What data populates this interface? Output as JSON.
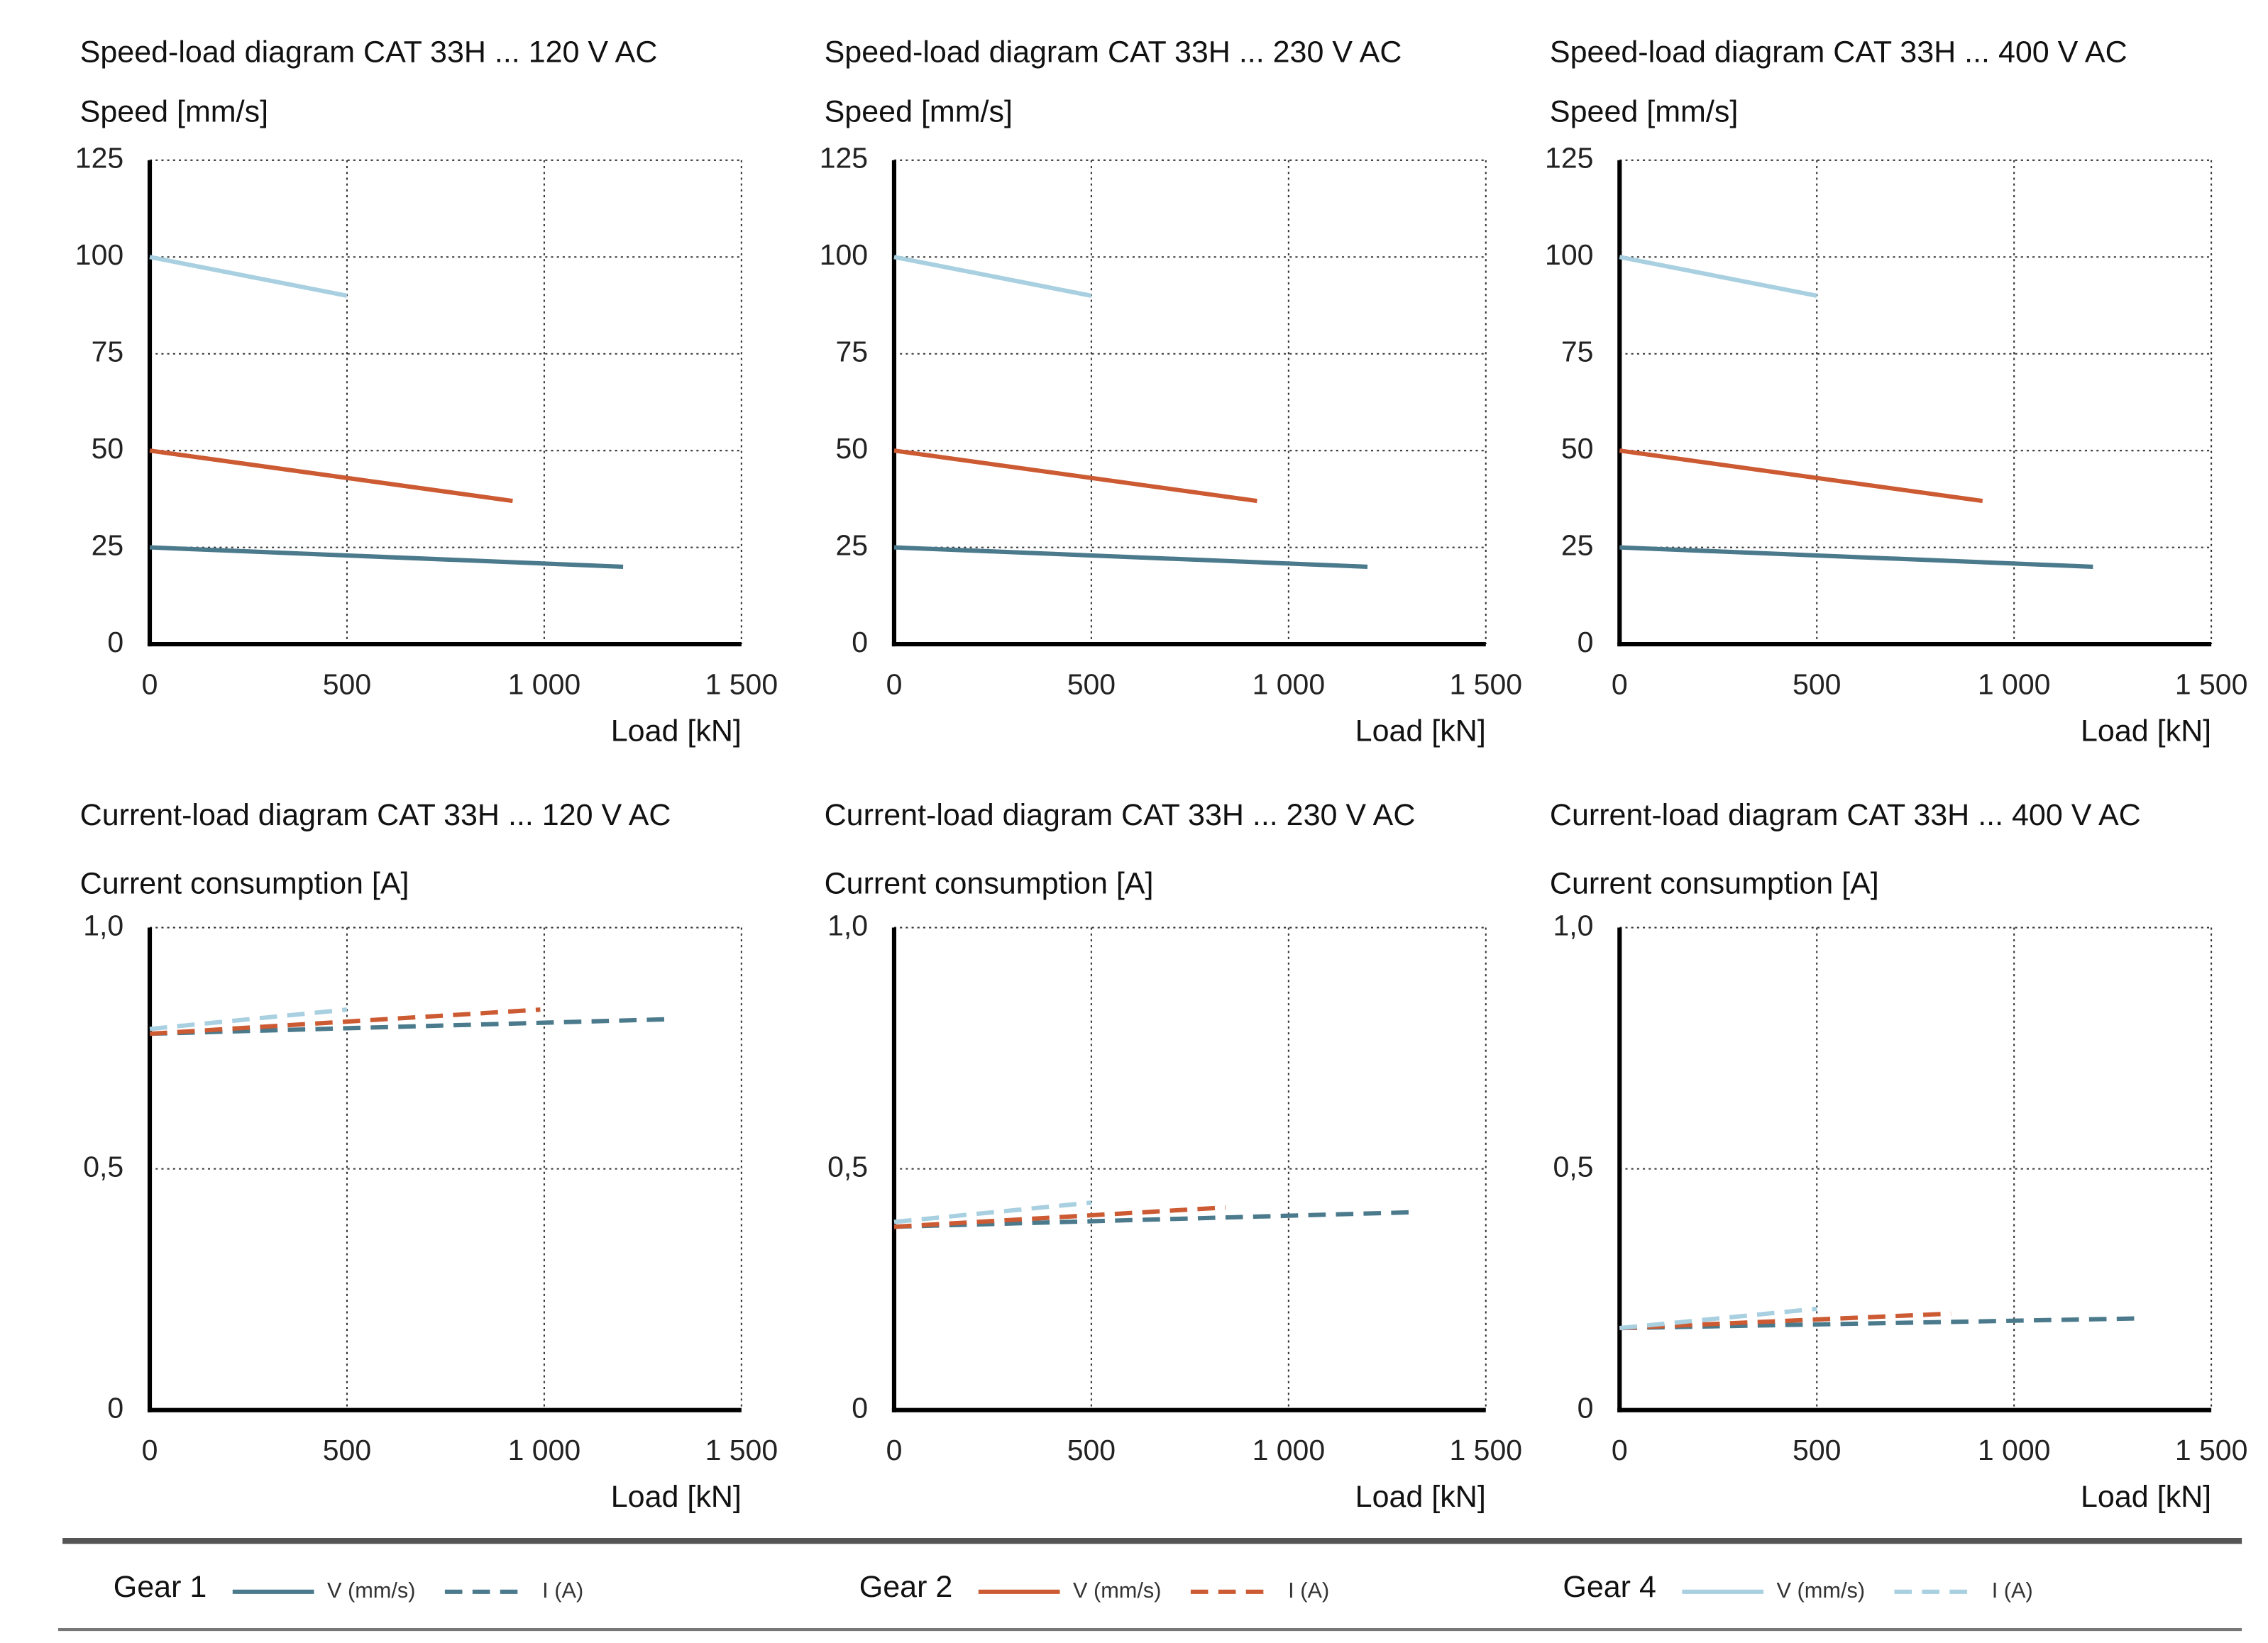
{
  "chart_data": [
    {
      "type": "line",
      "title": "Speed-load diagram  CAT 33H ... 120 V AC",
      "ylabel": "Speed [mm/s]",
      "xlabel": "Load [kN]",
      "xlim": [
        0,
        1500
      ],
      "xticks": [
        0,
        500,
        {
          "value": 1000,
          "label": "1 000"
        },
        {
          "value": 1500,
          "label": "1 500"
        }
      ],
      "ylim": [
        0,
        125
      ],
      "yticks": [
        0,
        25,
        50,
        75,
        100,
        125
      ],
      "grid": true,
      "line_style": "solid",
      "series": [
        {
          "name": "Gear 1",
          "color": "#4a7a8c",
          "x": [
            0,
            1200
          ],
          "values": [
            25,
            20
          ]
        },
        {
          "name": "Gear 2",
          "color": "#cc5a32",
          "x": [
            0,
            920
          ],
          "values": [
            50,
            37
          ]
        },
        {
          "name": "Gear 4",
          "color": "#a8d0e0",
          "x": [
            0,
            500
          ],
          "values": [
            100,
            90
          ]
        }
      ]
    },
    {
      "type": "line",
      "title": "Speed-load diagram CAT 33H ... 230 V AC",
      "ylabel": "Speed [mm/s]",
      "xlabel": "Load [kN]",
      "xlim": [
        0,
        1500
      ],
      "xticks": [
        0,
        500,
        {
          "value": 1000,
          "label": "1 000"
        },
        {
          "value": 1500,
          "label": "1 500"
        }
      ],
      "ylim": [
        0,
        125
      ],
      "yticks": [
        0,
        25,
        50,
        75,
        100,
        125
      ],
      "grid": true,
      "line_style": "solid",
      "series": [
        {
          "name": "Gear 1",
          "color": "#4a7a8c",
          "x": [
            0,
            1200
          ],
          "values": [
            25,
            20
          ]
        },
        {
          "name": "Gear 2",
          "color": "#cc5a32",
          "x": [
            0,
            920
          ],
          "values": [
            50,
            37
          ]
        },
        {
          "name": "Gear 4",
          "color": "#a8d0e0",
          "x": [
            0,
            500
          ],
          "values": [
            100,
            90
          ]
        }
      ]
    },
    {
      "type": "line",
      "title": "Speed-load diagram CAT 33H ... 400 V AC",
      "ylabel": "Speed [mm/s]",
      "xlabel": "Load [kN]",
      "xlim": [
        0,
        1500
      ],
      "xticks": [
        0,
        500,
        {
          "value": 1000,
          "label": "1 000"
        },
        {
          "value": 1500,
          "label": "1 500"
        }
      ],
      "ylim": [
        0,
        125
      ],
      "yticks": [
        0,
        25,
        50,
        75,
        100,
        125
      ],
      "grid": true,
      "line_style": "solid",
      "series": [
        {
          "name": "Gear 1",
          "color": "#4a7a8c",
          "x": [
            0,
            1200
          ],
          "values": [
            25,
            20
          ]
        },
        {
          "name": "Gear 2",
          "color": "#cc5a32",
          "x": [
            0,
            920
          ],
          "values": [
            50,
            37
          ]
        },
        {
          "name": "Gear 4",
          "color": "#a8d0e0",
          "x": [
            0,
            500
          ],
          "values": [
            100,
            90
          ]
        }
      ]
    },
    {
      "type": "line",
      "title": "Current-load diagram  CAT 33H ... 120 V AC",
      "ylabel": "Current consumption [A]",
      "xlabel": "Load [kN]",
      "xlim": [
        0,
        1500
      ],
      "xticks": [
        0,
        500,
        {
          "value": 1000,
          "label": "1 000"
        },
        {
          "value": 1500,
          "label": "1 500"
        }
      ],
      "ylim": [
        0,
        1
      ],
      "yticks": [
        0,
        {
          "value": 0.5,
          "label": "0,5"
        },
        {
          "value": 1,
          "label": "1,0"
        }
      ],
      "grid": true,
      "line_style": "dashed",
      "series": [
        {
          "name": "Gear 1",
          "color": "#4a7a8c",
          "x": [
            0,
            1310
          ],
          "values": [
            0.78,
            0.81
          ]
        },
        {
          "name": "Gear 2",
          "color": "#cc5a32",
          "x": [
            0,
            990
          ],
          "values": [
            0.78,
            0.83
          ]
        },
        {
          "name": "Gear 4",
          "color": "#a8d0e0",
          "x": [
            0,
            500
          ],
          "values": [
            0.79,
            0.83
          ]
        }
      ]
    },
    {
      "type": "line",
      "title": "Current-load diagram  CAT 33H ... 230 V AC",
      "ylabel": "Current consumption [A]",
      "xlabel": "Load [kN]",
      "xlim": [
        0,
        1500
      ],
      "xticks": [
        0,
        500,
        {
          "value": 1000,
          "label": "1 000"
        },
        {
          "value": 1500,
          "label": "1 500"
        }
      ],
      "ylim": [
        0,
        1
      ],
      "yticks": [
        0,
        {
          "value": 0.5,
          "label": "0,5"
        },
        {
          "value": 1,
          "label": "1,0"
        }
      ],
      "grid": true,
      "line_style": "dashed",
      "series": [
        {
          "name": "Gear 1",
          "color": "#4a7a8c",
          "x": [
            0,
            1310
          ],
          "values": [
            0.38,
            0.41
          ]
        },
        {
          "name": "Gear 2",
          "color": "#cc5a32",
          "x": [
            0,
            840
          ],
          "values": [
            0.38,
            0.42
          ]
        },
        {
          "name": "Gear 4",
          "color": "#a8d0e0",
          "x": [
            0,
            500
          ],
          "values": [
            0.39,
            0.43
          ]
        }
      ]
    },
    {
      "type": "line",
      "title": "Current-load diagram  CAT 33H ... 400 V AC",
      "ylabel": "Current consumption [A]",
      "xlabel": "Load [kN]",
      "xlim": [
        0,
        1500
      ],
      "xticks": [
        0,
        500,
        {
          "value": 1000,
          "label": "1 000"
        },
        {
          "value": 1500,
          "label": "1 500"
        }
      ],
      "ylim": [
        0,
        1
      ],
      "yticks": [
        0,
        {
          "value": 0.5,
          "label": "0,5"
        },
        {
          "value": 1,
          "label": "1,0"
        }
      ],
      "grid": true,
      "line_style": "dashed",
      "series": [
        {
          "name": "Gear 1",
          "color": "#4a7a8c",
          "x": [
            0,
            1310
          ],
          "values": [
            0.17,
            0.19
          ]
        },
        {
          "name": "Gear 2",
          "color": "#cc5a32",
          "x": [
            0,
            840
          ],
          "values": [
            0.17,
            0.2
          ]
        },
        {
          "name": "Gear 4",
          "color": "#a8d0e0",
          "x": [
            0,
            500
          ],
          "values": [
            0.17,
            0.21
          ]
        }
      ]
    }
  ],
  "legend": {
    "entries": [
      {
        "label": "Gear 1",
        "color": "#4a7a8c",
        "solid": "V (mm/s)",
        "dashed": "I (A)"
      },
      {
        "label": "Gear 2",
        "color": "#cc5a32",
        "solid": "V (mm/s)",
        "dashed": "I (A)"
      },
      {
        "label": "Gear 4",
        "color": "#a8d0e0",
        "solid": "V (mm/s)",
        "dashed": "I (A)"
      }
    ]
  }
}
